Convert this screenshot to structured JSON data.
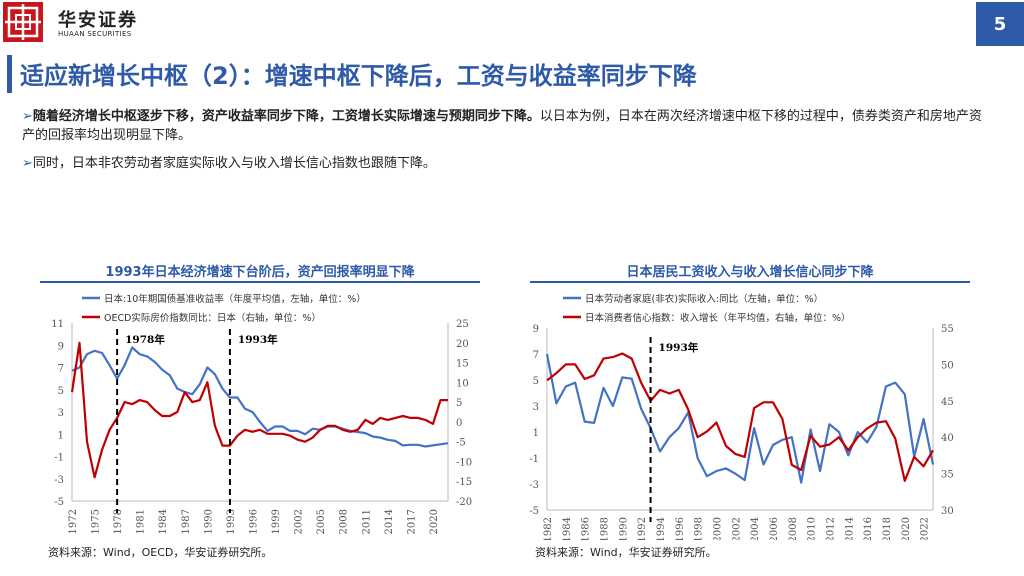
{
  "header": {
    "logo_cn": "华安证券",
    "logo_en": "HUAAN SECURITIES",
    "page_number": "5"
  },
  "title": "适应新增长中枢（2）：增速中枢下降后，工资与收益率同步下降",
  "bullets": [
    {
      "bold": "随着经济增长中枢逐步下移，资产收益率同步下降，工资增长实际增速与预期同步下降。",
      "text": "以日本为例，日本在两次经济增速中枢下移的过程中，债券类资产和房地产资产的回报率均出现明显下降。"
    },
    {
      "bold": "",
      "text": "同时，日本非农劳动者家庭实际收入与收入增长信心指数也跟随下降。"
    }
  ],
  "chart_data": [
    {
      "type": "line",
      "title": "1993年日本经济增速下台阶后，资产回报率明显下降",
      "source": "资料来源：Wind，OECD，华安证券研究所。",
      "x": [
        1972,
        1973,
        1974,
        1975,
        1976,
        1977,
        1978,
        1979,
        1980,
        1981,
        1982,
        1983,
        1984,
        1985,
        1986,
        1987,
        1988,
        1989,
        1990,
        1991,
        1992,
        1993,
        1994,
        1995,
        1996,
        1997,
        1998,
        1999,
        2000,
        2001,
        2002,
        2003,
        2004,
        2005,
        2006,
        2007,
        2008,
        2009,
        2010,
        2011,
        2012,
        2013,
        2014,
        2015,
        2016,
        2017,
        2018,
        2019,
        2020,
        2021,
        2022
      ],
      "xticks": [
        1972,
        1975,
        1978,
        1981,
        1984,
        1987,
        1990,
        1993,
        1996,
        1999,
        2002,
        2005,
        2008,
        2011,
        2014,
        2017,
        2020
      ],
      "y_left_lim": [
        -5,
        11
      ],
      "y_left_ticks": [
        11,
        9,
        7,
        5,
        3,
        1,
        -1,
        -3,
        -5
      ],
      "y_right_lim": [
        -20,
        25
      ],
      "y_right_ticks": [
        25,
        20,
        15,
        10,
        5,
        0,
        -5,
        -10,
        -15,
        -20
      ],
      "series": [
        {
          "name": "日本:10年期国债基准收益率（年度平均值，左轴，单位：%）",
          "axis": "left",
          "color": "#4472c4",
          "values": [
            6.7,
            7.0,
            8.2,
            8.5,
            8.3,
            7.2,
            6.0,
            7.2,
            8.8,
            8.2,
            8.0,
            7.5,
            6.8,
            6.3,
            5.1,
            4.8,
            4.6,
            5.5,
            7.0,
            6.4,
            5.1,
            4.3,
            4.3,
            3.3,
            3.0,
            2.1,
            1.3,
            1.7,
            1.7,
            1.3,
            1.3,
            1.0,
            1.5,
            1.4,
            1.7,
            1.7,
            1.5,
            1.3,
            1.2,
            1.1,
            0.8,
            0.7,
            0.5,
            0.4,
            0.0,
            0.05,
            0.05,
            -0.1,
            0.0,
            0.1,
            0.2
          ]
        },
        {
          "name": "OECD实际房价指数同比：日本（右轴，单位：%）",
          "axis": "right",
          "color": "#c00000",
          "values": [
            7.5,
            20.0,
            -5.0,
            -14.0,
            -7.0,
            -2.0,
            1.0,
            5.0,
            4.5,
            5.5,
            5.0,
            3.0,
            1.5,
            1.5,
            2.5,
            7.5,
            5.0,
            5.5,
            10.0,
            -1.0,
            -6.0,
            -6.0,
            -3.5,
            -2.0,
            -2.5,
            -2.0,
            -3.0,
            -3.0,
            -3.0,
            -3.5,
            -4.5,
            -5.0,
            -4.0,
            -2.0,
            -1.0,
            -1.0,
            -2.0,
            -2.5,
            -2.0,
            0.5,
            -0.5,
            1.0,
            0.5,
            1.0,
            1.5,
            1.0,
            1.0,
            0.5,
            -0.5,
            5.5,
            5.5
          ]
        }
      ],
      "annotations": [
        {
          "x": 1978,
          "label": "1978年"
        },
        {
          "x": 1993,
          "label": "1993年"
        }
      ]
    },
    {
      "type": "line",
      "title": "日本居民工资收入与收入增长信心同步下降",
      "source": "资料来源：Wind，华安证券研究所。",
      "x": [
        1982,
        1983,
        1984,
        1985,
        1986,
        1987,
        1988,
        1989,
        1990,
        1991,
        1992,
        1993,
        1994,
        1995,
        1996,
        1997,
        1998,
        1999,
        2000,
        2001,
        2002,
        2003,
        2004,
        2005,
        2006,
        2007,
        2008,
        2009,
        2010,
        2011,
        2012,
        2013,
        2014,
        2015,
        2016,
        2017,
        2018,
        2019,
        2020,
        2021,
        2022,
        2023
      ],
      "xticks": [
        1982,
        1984,
        1986,
        1988,
        1990,
        1992,
        1994,
        1996,
        1998,
        2000,
        2002,
        2004,
        2006,
        2008,
        2010,
        2012,
        2014,
        2016,
        2018,
        2020,
        2022
      ],
      "y_left_lim": [
        -5,
        9
      ],
      "y_left_ticks": [
        9,
        7,
        5,
        3,
        1,
        -1,
        -3,
        -5
      ],
      "y_right_lim": [
        30,
        55
      ],
      "y_right_ticks": [
        55,
        50,
        45,
        40,
        35,
        30
      ],
      "series": [
        {
          "name": "日本劳动者家庭(非农)实际收入:同比（左轴，单位：%）",
          "axis": "left",
          "color": "#4472c4",
          "values": [
            7.0,
            3.2,
            4.5,
            4.8,
            1.8,
            1.7,
            4.4,
            3.0,
            5.2,
            5.1,
            2.8,
            1.3,
            -0.5,
            0.6,
            1.3,
            2.5,
            -1.0,
            -2.4,
            -2.0,
            -1.8,
            -2.2,
            -2.7,
            1.3,
            -1.5,
            0.0,
            0.4,
            0.6,
            -2.9,
            1.2,
            -2.0,
            1.6,
            1.0,
            -0.8,
            1.0,
            0.2,
            1.4,
            4.5,
            4.8,
            3.9,
            -0.9,
            2.0,
            -1.5
          ]
        },
        {
          "name": "日本消费者信心指数：收入增长（年平均值，右轴，单位：%）",
          "axis": "right",
          "color": "#c00000",
          "values": [
            47.8,
            48.8,
            50.0,
            50.0,
            48.0,
            48.5,
            50.8,
            51.0,
            51.5,
            50.8,
            47.5,
            45.0,
            46.5,
            46.0,
            46.5,
            43.8,
            40.0,
            40.8,
            42.0,
            38.8,
            37.7,
            37.3,
            44.0,
            44.8,
            44.8,
            42.5,
            36.2,
            35.5,
            40.2,
            38.7,
            39.0,
            40.0,
            38.2,
            40.0,
            41.2,
            42.0,
            42.2,
            39.8,
            34.0,
            37.3,
            36.0,
            38.2
          ]
        }
      ],
      "annotations": [
        {
          "x": 1993,
          "label": "1993年"
        }
      ]
    }
  ]
}
